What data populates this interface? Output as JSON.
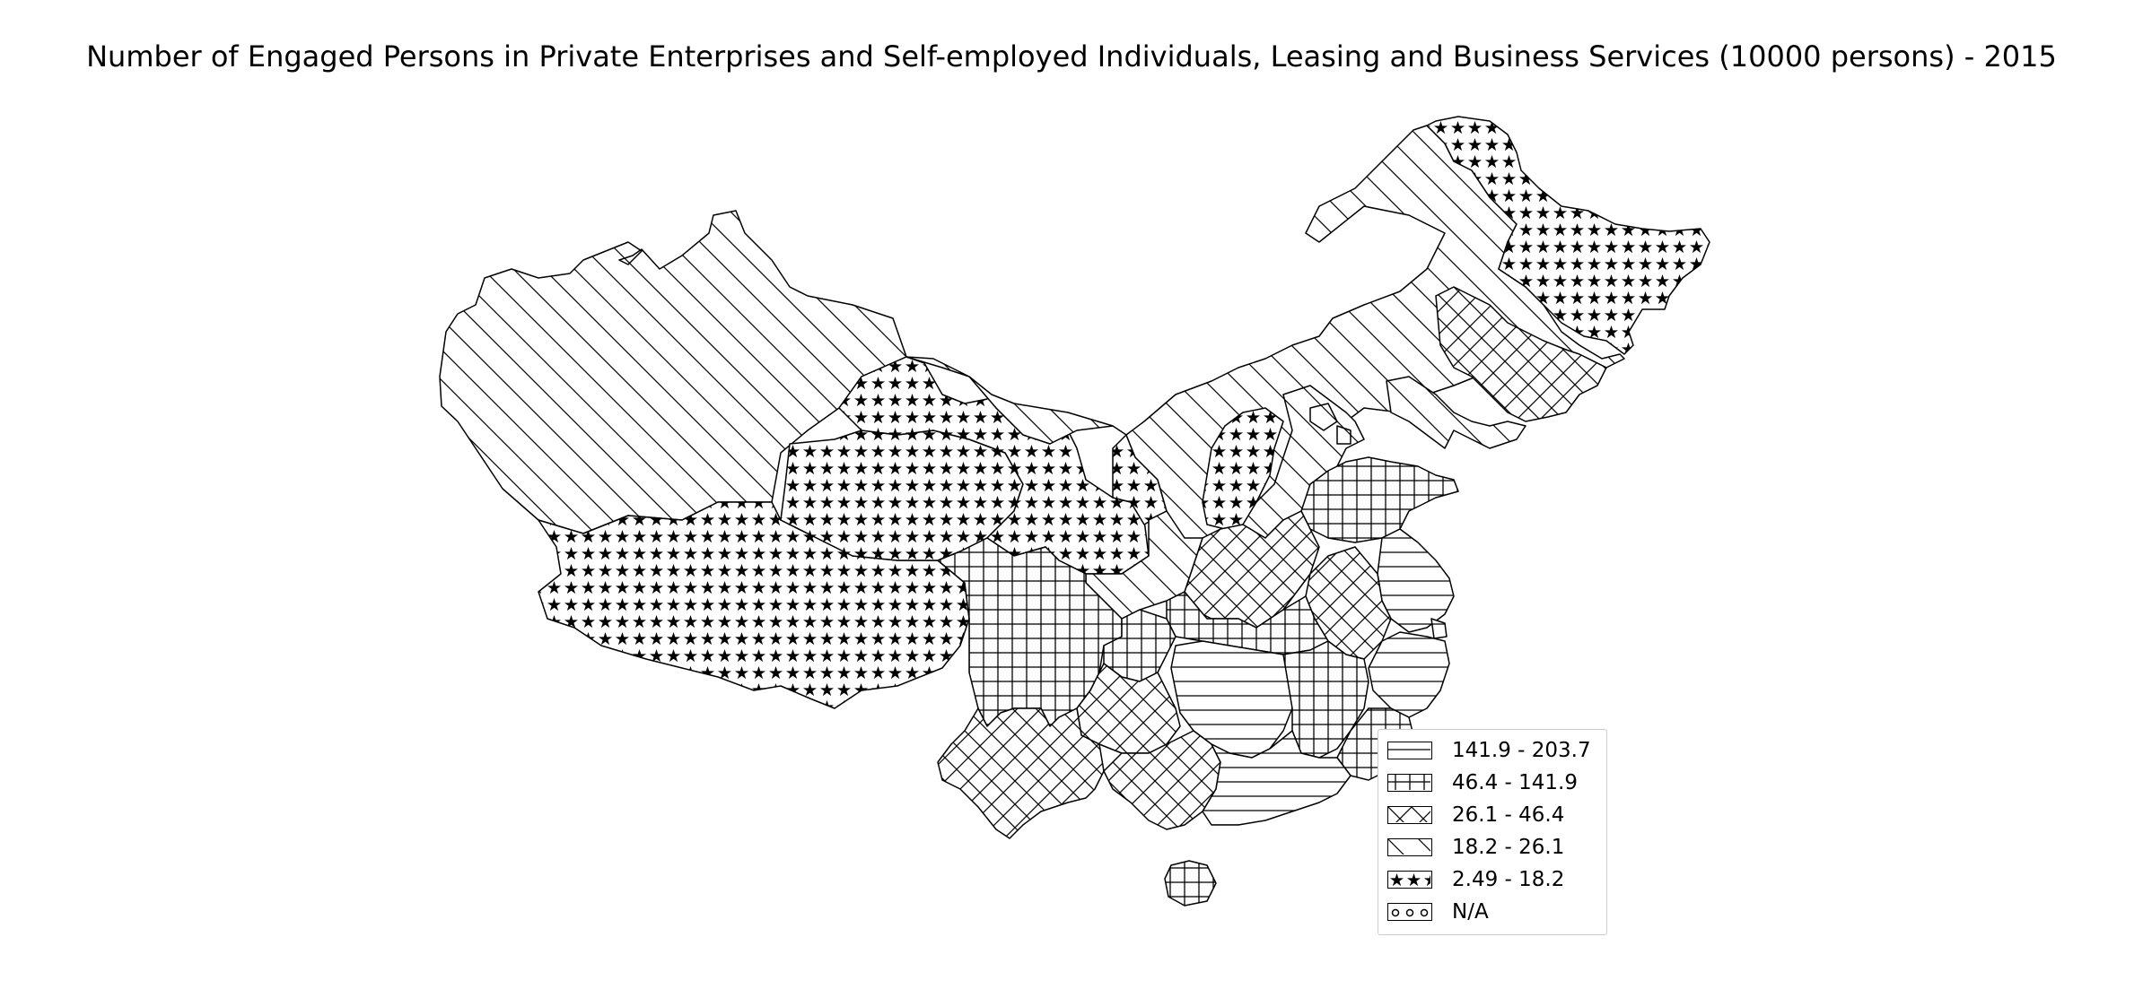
{
  "map": {
    "title": "Number of Engaged Persons in Private Enterprises and Self-employed Individuals, Leasing and Business Services (10000 persons) - 2015",
    "legend": [
      {
        "label": "141.9 - 203.7",
        "pattern": "horizontal-lines"
      },
      {
        "label": "46.4 - 141.9",
        "pattern": "grid"
      },
      {
        "label": "26.1 - 46.4",
        "pattern": "crosshatch-diagonal"
      },
      {
        "label": "18.2 - 26.1",
        "pattern": "backslash-diagonal"
      },
      {
        "label": "2.49 - 18.2",
        "pattern": "stars"
      },
      {
        "label": "N/A",
        "pattern": "circles"
      }
    ],
    "colors": {
      "outline": "#000000",
      "fill": "#ffffff",
      "legend_border": "#cccccc"
    }
  }
}
